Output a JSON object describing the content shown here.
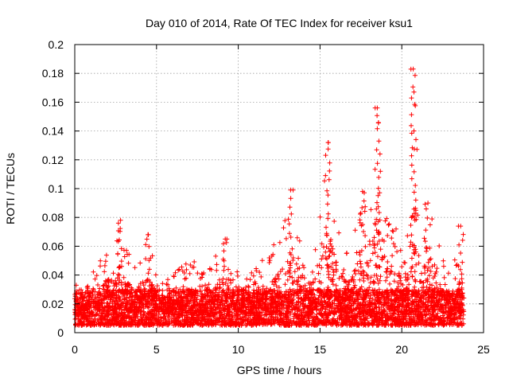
{
  "chart_data": {
    "type": "scatter",
    "title": "Day 010 of 2014, Rate Of TEC Index for receiver ksu1",
    "xlabel": "GPS time / hours",
    "ylabel": "ROTI / TECUs",
    "xlim": [
      0,
      25
    ],
    "ylim": [
      0,
      0.2
    ],
    "x_ticks": [
      "0",
      "5",
      "10",
      "15",
      "20",
      "25"
    ],
    "y_ticks": [
      "0",
      "0.02",
      "0.04",
      "0.06",
      "0.08",
      "0.1",
      "0.12",
      "0.14",
      "0.16",
      "0.18",
      "0.2"
    ],
    "grid": true,
    "marker": "+",
    "marker_color": "#ff0000",
    "series": [
      {
        "name": "ROTI",
        "description": "Dense cloud of '+' markers, baseline 0.005-0.03 TECU across 0-23.8 h",
        "envelope_x": [
          0,
          0.3,
          1.3,
          2.7,
          3.6,
          4.4,
          5.2,
          6.2,
          7.1,
          8.0,
          8.9,
          9.3,
          10.5,
          11.2,
          12.0,
          13.2,
          14.0,
          14.8,
          15.5,
          15.9,
          16.7,
          17.6,
          18.0,
          18.5,
          19.2,
          19.8,
          20.3,
          20.7,
          21.2,
          21.6,
          22.2,
          22.8,
          23.2,
          23.7
        ],
        "envelope_y": [
          0.047,
          0.03,
          0.045,
          0.079,
          0.048,
          0.068,
          0.04,
          0.042,
          0.052,
          0.04,
          0.06,
          0.065,
          0.04,
          0.048,
          0.055,
          0.099,
          0.056,
          0.06,
          0.132,
          0.09,
          0.058,
          0.1,
          0.078,
          0.156,
          0.08,
          0.07,
          0.065,
          0.183,
          0.072,
          0.09,
          0.075,
          0.045,
          0.052,
          0.074
        ],
        "peaks": [
          {
            "x": 2.8,
            "y": 0.078
          },
          {
            "x": 4.5,
            "y": 0.068
          },
          {
            "x": 9.2,
            "y": 0.065
          },
          {
            "x": 13.2,
            "y": 0.099
          },
          {
            "x": 15.5,
            "y": 0.132
          },
          {
            "x": 17.6,
            "y": 0.098
          },
          {
            "x": 18.5,
            "y": 0.156
          },
          {
            "x": 20.7,
            "y": 0.183
          },
          {
            "x": 21.6,
            "y": 0.09
          },
          {
            "x": 23.6,
            "y": 0.074
          }
        ]
      }
    ]
  }
}
